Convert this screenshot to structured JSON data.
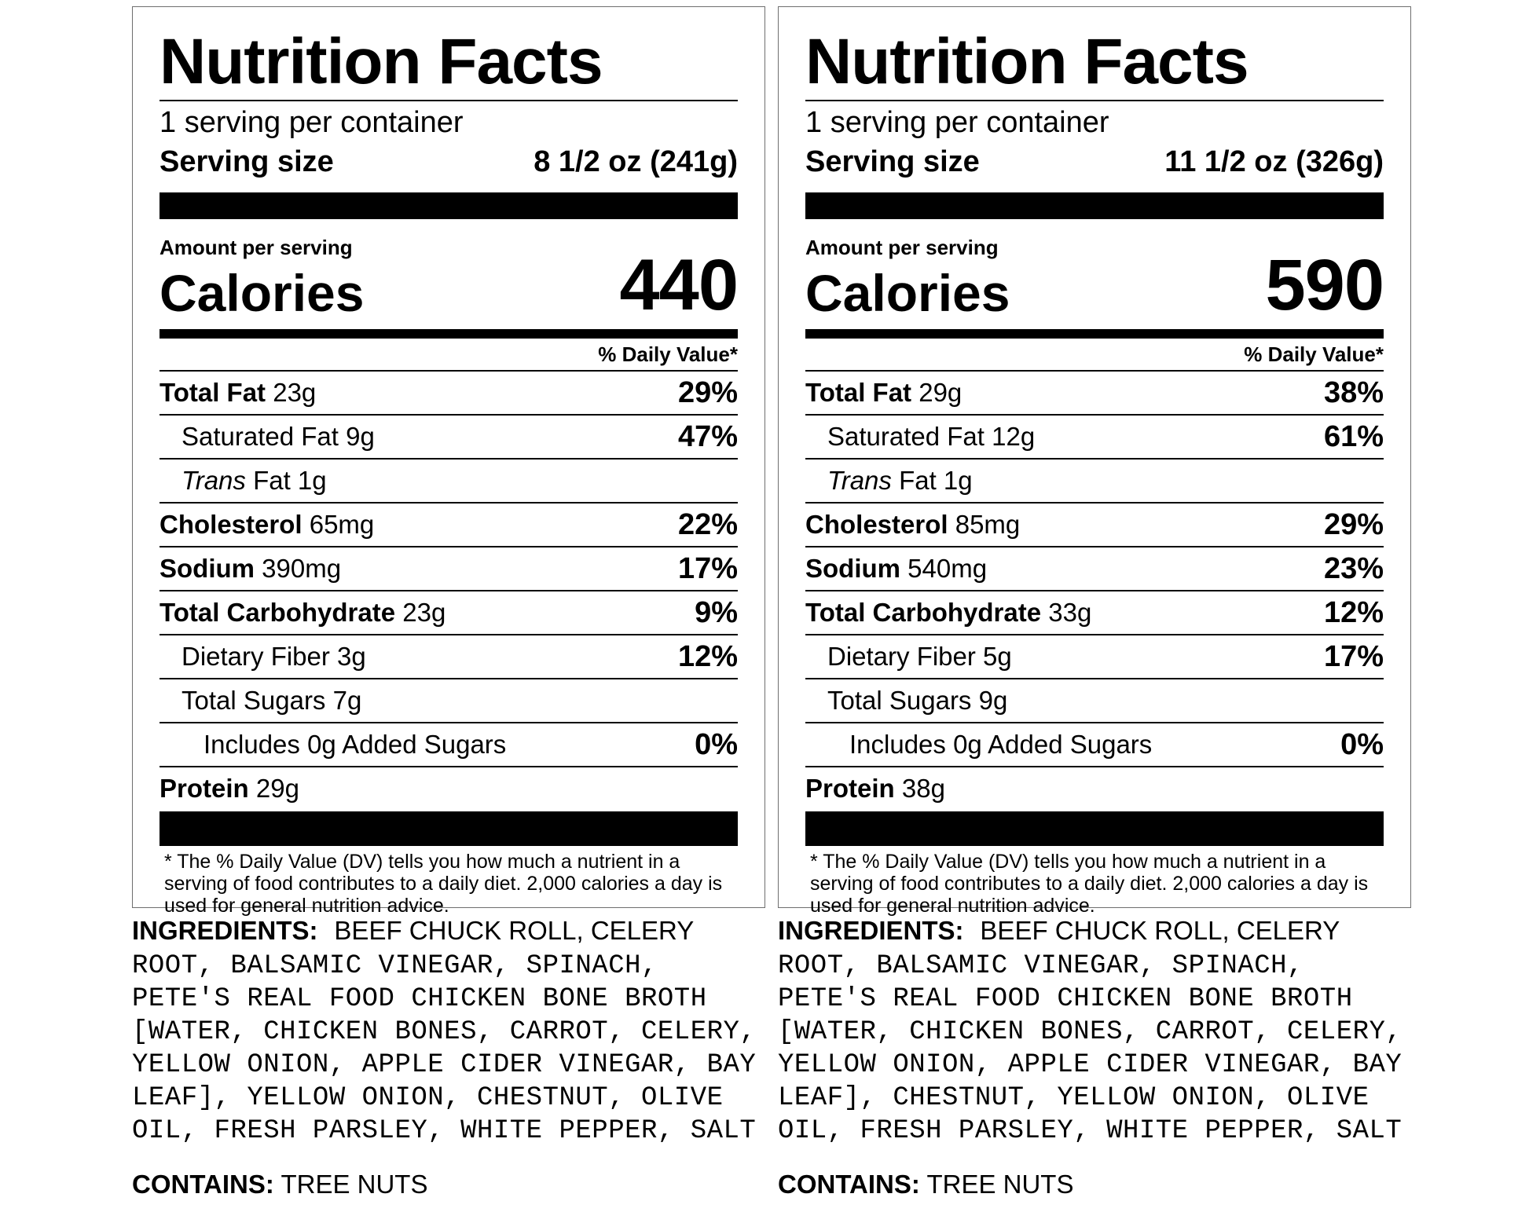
{
  "labels": [
    {
      "title": "Nutrition Facts",
      "servings": "1 serving per container",
      "serving_size_label": "Serving size",
      "serving_size_value": "8 1/2 oz (241g)",
      "amount_per_serving": "Amount per serving",
      "calories_label": "Calories",
      "calories_value": "440",
      "dv_header": "% Daily Value*",
      "nutrients": {
        "total_fat": {
          "name": "Total Fat",
          "amount": "23g",
          "dv": "29%"
        },
        "saturated_fat": {
          "name": "Saturated Fat 9g",
          "dv": "47%"
        },
        "trans_fat": {
          "name_italic": "Trans",
          "name_rest": " Fat 1g"
        },
        "cholesterol": {
          "name": "Cholesterol",
          "amount": "65mg",
          "dv": "22%"
        },
        "sodium": {
          "name": "Sodium",
          "amount": "390mg",
          "dv": "17%"
        },
        "total_carb": {
          "name": "Total Carbohydrate",
          "amount": "23g",
          "dv": "9%"
        },
        "fiber": {
          "name": "Dietary Fiber 3g",
          "dv": "12%"
        },
        "sugars": {
          "name": "Total Sugars 7g"
        },
        "added_sugars": {
          "name": "Includes 0g Added Sugars",
          "dv": "0%"
        },
        "protein": {
          "name": "Protein",
          "amount": "29g"
        }
      },
      "footnote": "* The % Daily Value (DV) tells you how much a nutrient in a serving of food contributes to a daily diet. 2,000 calories a day is used for general nutrition advice.",
      "ingredients_label": "INGREDIENTS:",
      "ingredients_first": "BEEF CHUCK ROLL, CELERY",
      "ingredients_rest": "ROOT, BALSAMIC VINEGAR, SPINACH, PETE'S REAL FOOD CHICKEN BONE BROTH [WATER, CHICKEN BONES, CARROT, CELERY, YELLOW ONION, APPLE CIDER VINEGAR, BAY LEAF], YELLOW ONION, CHESTNUT, OLIVE OIL, FRESH PARSLEY, WHITE PEPPER, SALT",
      "contains_label": "CONTAINS:",
      "contains_value": "TREE NUTS"
    },
    {
      "title": "Nutrition Facts",
      "servings": "1 serving per container",
      "serving_size_label": "Serving size",
      "serving_size_value": "11 1/2 oz (326g)",
      "amount_per_serving": "Amount per serving",
      "calories_label": "Calories",
      "calories_value": "590",
      "dv_header": "% Daily Value*",
      "nutrients": {
        "total_fat": {
          "name": "Total Fat",
          "amount": "29g",
          "dv": "38%"
        },
        "saturated_fat": {
          "name": "Saturated Fat 12g",
          "dv": "61%"
        },
        "trans_fat": {
          "name_italic": "Trans",
          "name_rest": " Fat 1g"
        },
        "cholesterol": {
          "name": "Cholesterol",
          "amount": "85mg",
          "dv": "29%"
        },
        "sodium": {
          "name": "Sodium",
          "amount": "540mg",
          "dv": "23%"
        },
        "total_carb": {
          "name": "Total Carbohydrate",
          "amount": "33g",
          "dv": "12%"
        },
        "fiber": {
          "name": "Dietary Fiber 5g",
          "dv": "17%"
        },
        "sugars": {
          "name": "Total Sugars 9g"
        },
        "added_sugars": {
          "name": "Includes 0g Added Sugars",
          "dv": "0%"
        },
        "protein": {
          "name": "Protein",
          "amount": "38g"
        }
      },
      "footnote": "* The % Daily Value (DV) tells you how much a nutrient in a serving of food contributes to a daily diet. 2,000 calories a day is used for general nutrition advice.",
      "ingredients_label": "INGREDIENTS:",
      "ingredients_first": "BEEF CHUCK ROLL, CELERY",
      "ingredients_rest": "ROOT, BALSAMIC VINEGAR, SPINACH, PETE'S REAL FOOD CHICKEN BONE BROTH [WATER, CHICKEN BONES, CARROT, CELERY, YELLOW ONION, APPLE CIDER VINEGAR, BAY LEAF], CHESTNUT, YELLOW ONION, OLIVE OIL, FRESH PARSLEY, WHITE PEPPER, SALT",
      "contains_label": "CONTAINS:",
      "contains_value": "TREE NUTS"
    }
  ]
}
